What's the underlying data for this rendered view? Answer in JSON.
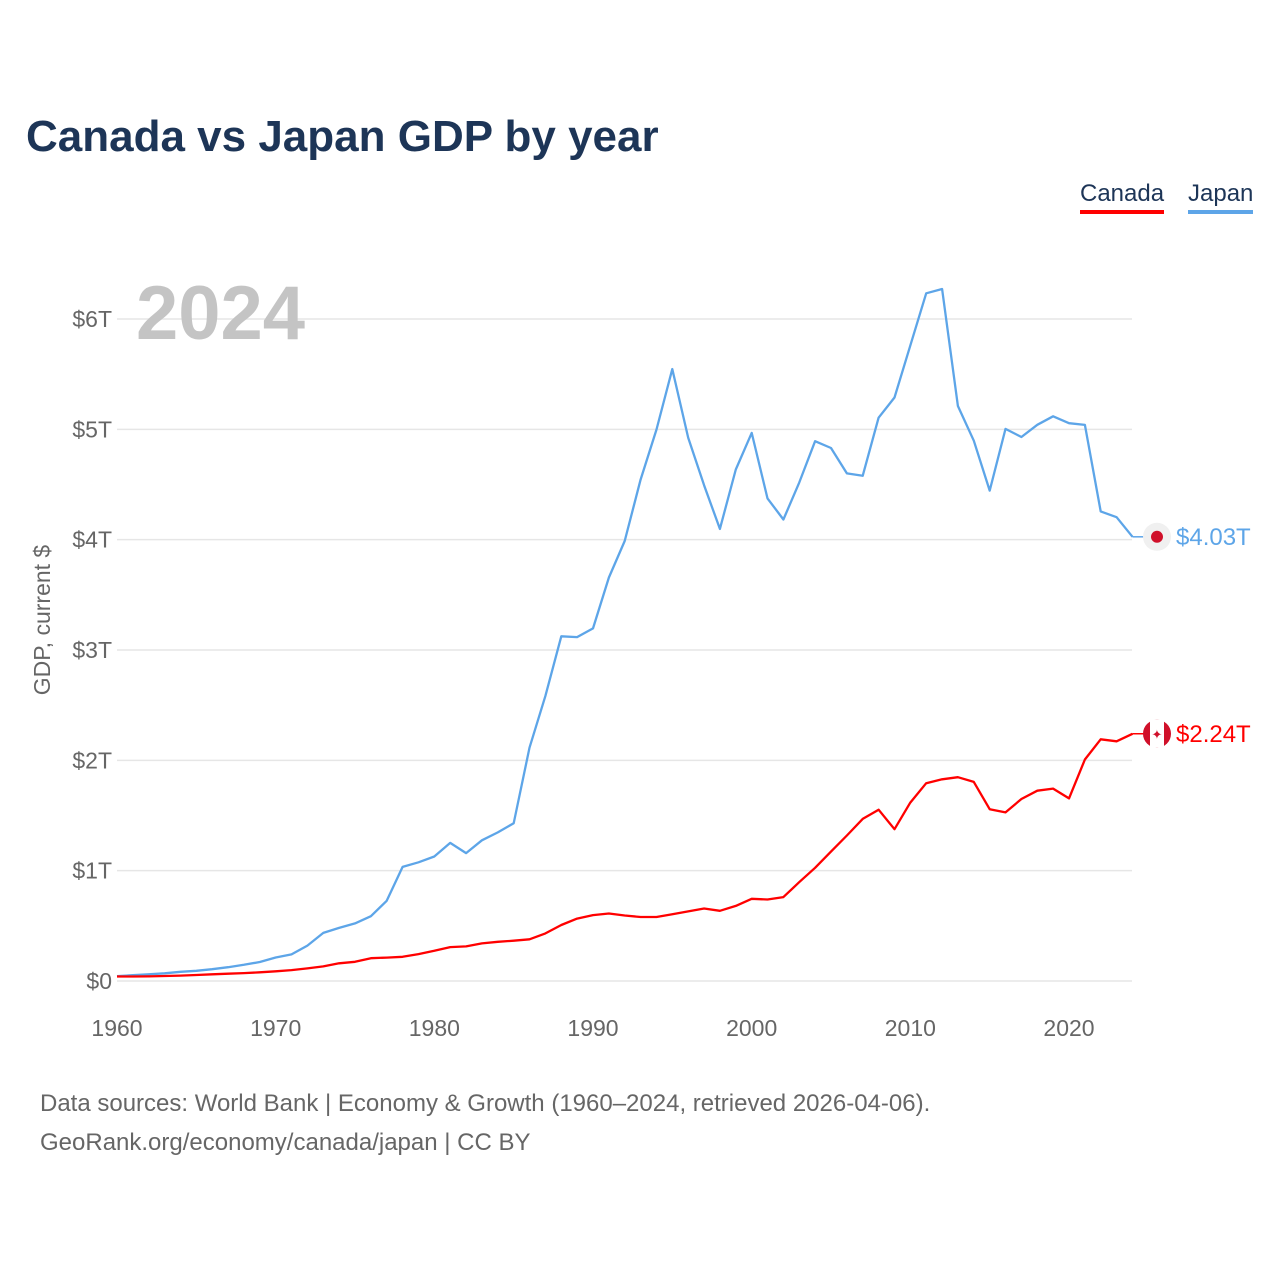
{
  "title": "Canada vs Japan GDP by year",
  "legend": [
    {
      "label": "Canada",
      "color": "#ff0000"
    },
    {
      "label": "Japan",
      "color": "#5da5e8"
    }
  ],
  "year_overlay": "2024",
  "footer": {
    "line1": "Data sources: World Bank | Economy & Growth (1960–2024, retrieved 2026-04-06).",
    "line2": "GeoRank.org/economy/canada/japan | CC BY"
  },
  "chart_data": {
    "type": "line",
    "title": "Canada vs Japan GDP by year",
    "xlabel": "",
    "ylabel": "GDP, current $",
    "xlim": [
      1960,
      2024
    ],
    "ylim": [
      0,
      6.6
    ],
    "x_ticks": [
      1960,
      1970,
      1980,
      1990,
      2000,
      2010,
      2020
    ],
    "y_ticks": [
      {
        "v": 0,
        "label": "$0"
      },
      {
        "v": 1,
        "label": "$1T"
      },
      {
        "v": 2,
        "label": "$2T"
      },
      {
        "v": 3,
        "label": "$3T"
      },
      {
        "v": 4,
        "label": "$4T"
      },
      {
        "v": 5,
        "label": "$5T"
      },
      {
        "v": 6,
        "label": "$6T"
      }
    ],
    "legend_position": "top-right",
    "x_start": 1960,
    "series": [
      {
        "name": "Canada",
        "color": "#ff0000",
        "end_label": "$2.24T",
        "flag": "canada",
        "values": [
          0.041,
          0.041,
          0.042,
          0.045,
          0.049,
          0.054,
          0.061,
          0.066,
          0.072,
          0.079,
          0.088,
          0.099,
          0.114,
          0.132,
          0.16,
          0.174,
          0.207,
          0.212,
          0.219,
          0.244,
          0.274,
          0.307,
          0.314,
          0.341,
          0.355,
          0.365,
          0.378,
          0.431,
          0.508,
          0.566,
          0.597,
          0.612,
          0.594,
          0.58,
          0.58,
          0.605,
          0.631,
          0.657,
          0.636,
          0.681,
          0.745,
          0.739,
          0.76,
          0.896,
          1.026,
          1.173,
          1.319,
          1.469,
          1.553,
          1.376,
          1.617,
          1.793,
          1.828,
          1.847,
          1.805,
          1.557,
          1.528,
          1.65,
          1.725,
          1.744,
          1.655,
          2.008,
          2.191,
          2.173,
          2.241
        ]
      },
      {
        "name": "Japan",
        "color": "#5da5e8",
        "end_label": "$4.03T",
        "flag": "japan",
        "values": [
          0.044,
          0.053,
          0.061,
          0.07,
          0.083,
          0.092,
          0.107,
          0.125,
          0.147,
          0.172,
          0.213,
          0.241,
          0.321,
          0.436,
          0.481,
          0.522,
          0.587,
          0.727,
          1.034,
          1.076,
          1.128,
          1.252,
          1.159,
          1.275,
          1.347,
          1.43,
          2.115,
          2.584,
          3.124,
          3.117,
          3.196,
          3.657,
          3.988,
          4.545,
          4.999,
          5.546,
          4.923,
          4.493,
          4.098,
          4.636,
          4.968,
          4.374,
          4.183,
          4.519,
          4.893,
          4.831,
          4.601,
          4.579,
          5.106,
          5.289,
          5.759,
          6.233,
          6.272,
          5.212,
          4.897,
          4.445,
          5.004,
          4.931,
          5.041,
          5.118,
          5.056,
          5.04,
          4.256,
          4.204,
          4.026
        ]
      }
    ]
  }
}
